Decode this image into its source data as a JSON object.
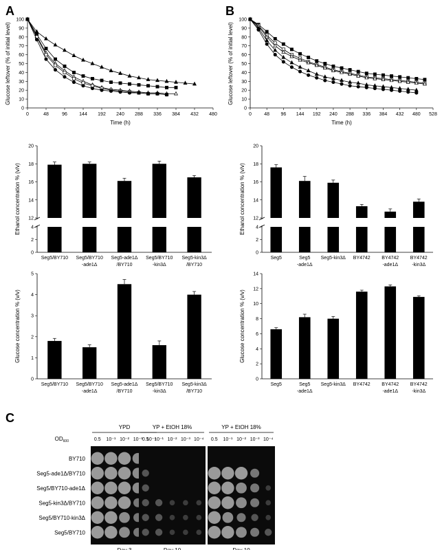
{
  "panels": {
    "A": "A",
    "B": "B",
    "C": "C"
  },
  "chart_data": [
    {
      "id": "A-line",
      "type": "line",
      "xlabel": "Time (h)",
      "ylabel": "Glucose leftover (% of initial level)",
      "xlim": [
        0,
        480
      ],
      "ylim": [
        0,
        100
      ],
      "xticks": [
        "0",
        "48",
        "96",
        "144",
        "192",
        "240",
        "288",
        "336",
        "384",
        "432",
        "480"
      ],
      "yticks": [
        "0",
        "10",
        "20",
        "30",
        "40",
        "50",
        "60",
        "70",
        "80",
        "90",
        "100"
      ],
      "series": [
        {
          "marker": "triangle",
          "x": [
            0,
            24,
            48,
            72,
            96,
            120,
            144,
            168,
            192,
            216,
            240,
            264,
            288,
            312,
            336,
            360,
            384,
            408,
            432
          ],
          "y": [
            100,
            86,
            78,
            71,
            65,
            59,
            54,
            50,
            46,
            42,
            39,
            36,
            34,
            32,
            31,
            30,
            29,
            28,
            27
          ]
        },
        {
          "marker": "square",
          "x": [
            0,
            24,
            48,
            72,
            96,
            120,
            144,
            168,
            192,
            216,
            240,
            264,
            288,
            312,
            336,
            360,
            384
          ],
          "y": [
            100,
            83,
            67,
            55,
            47,
            40,
            36,
            33,
            31,
            29,
            28,
            27,
            26,
            25,
            24,
            23,
            23
          ]
        },
        {
          "marker": "open-triangle",
          "x": [
            0,
            24,
            48,
            72,
            96,
            120,
            144,
            168,
            192,
            216,
            240,
            264,
            288,
            312,
            336,
            360,
            384
          ],
          "y": [
            100,
            81,
            62,
            50,
            42,
            35,
            30,
            26,
            23,
            21,
            20,
            19,
            18,
            17,
            17,
            16,
            16
          ]
        },
        {
          "marker": "open-square",
          "x": [
            0,
            24,
            48,
            72,
            96,
            120,
            144,
            168,
            192,
            216,
            240,
            264,
            288,
            312,
            336,
            360
          ],
          "y": [
            100,
            80,
            60,
            48,
            40,
            33,
            28,
            25,
            22,
            20,
            19,
            18,
            17,
            16,
            16,
            15
          ]
        },
        {
          "marker": "circle",
          "x": [
            0,
            24,
            48,
            72,
            96,
            120,
            144,
            168,
            192,
            216,
            240,
            264,
            288,
            312,
            336,
            360
          ],
          "y": [
            100,
            77,
            55,
            43,
            35,
            29,
            25,
            22,
            20,
            19,
            18,
            17,
            17,
            16,
            16,
            15
          ]
        }
      ]
    },
    {
      "id": "B-line",
      "type": "line",
      "xlabel": "Time (h)",
      "ylabel": "Glucose leftover (% of initial level)",
      "xlim": [
        0,
        528
      ],
      "ylim": [
        0,
        100
      ],
      "xticks": [
        "0",
        "48",
        "96",
        "144",
        "192",
        "240",
        "288",
        "336",
        "384",
        "432",
        "480",
        "528"
      ],
      "yticks": [
        "0",
        "10",
        "20",
        "30",
        "40",
        "50",
        "60",
        "70",
        "80",
        "90",
        "100"
      ],
      "series": [
        {
          "marker": "square",
          "x": [
            0,
            24,
            48,
            72,
            96,
            120,
            144,
            168,
            192,
            216,
            240,
            264,
            288,
            312,
            336,
            360,
            384,
            408,
            432,
            456,
            480,
            504
          ],
          "y": [
            100,
            94,
            86,
            78,
            72,
            66,
            61,
            57,
            53,
            50,
            47,
            45,
            43,
            41,
            39,
            38,
            37,
            36,
            35,
            34,
            33,
            32
          ]
        },
        {
          "marker": "open-square",
          "x": [
            0,
            24,
            48,
            72,
            96,
            120,
            144,
            168,
            192,
            216,
            240,
            264,
            288,
            312,
            336,
            360,
            384,
            408,
            432,
            456,
            480,
            504
          ],
          "y": [
            100,
            93,
            82,
            73,
            66,
            60,
            56,
            52,
            49,
            46,
            43,
            41,
            39,
            37,
            35,
            34,
            33,
            32,
            31,
            30,
            29,
            28
          ]
        },
        {
          "marker": "open-triangle",
          "x": [
            0,
            24,
            48,
            72,
            96,
            120,
            144,
            168,
            192,
            216,
            240,
            264,
            288,
            312,
            336,
            360,
            384,
            408,
            432,
            456,
            480,
            504
          ],
          "y": [
            100,
            92,
            80,
            70,
            63,
            58,
            54,
            51,
            48,
            45,
            42,
            40,
            38,
            36,
            34,
            33,
            32,
            31,
            30,
            29,
            28,
            27
          ]
        },
        {
          "marker": "triangle",
          "x": [
            0,
            24,
            48,
            72,
            96,
            120,
            144,
            168,
            192,
            216,
            240,
            264,
            288,
            312,
            336,
            360,
            384,
            408,
            432,
            456,
            480
          ],
          "y": [
            100,
            90,
            76,
            65,
            57,
            51,
            46,
            42,
            38,
            35,
            33,
            31,
            29,
            28,
            26,
            25,
            24,
            23,
            22,
            21,
            20
          ]
        },
        {
          "marker": "circle",
          "x": [
            0,
            24,
            48,
            72,
            96,
            120,
            144,
            168,
            192,
            216,
            240,
            264,
            288,
            312,
            336,
            360,
            384,
            408,
            432,
            456,
            480
          ],
          "y": [
            100,
            88,
            72,
            60,
            52,
            46,
            41,
            37,
            34,
            31,
            29,
            27,
            25,
            24,
            23,
            22,
            21,
            20,
            19,
            18,
            17
          ]
        }
      ]
    },
    {
      "id": "A-ethanol",
      "type": "bar",
      "ylabel": "Ethanol concentration % (v/v)",
      "broken_axis": true,
      "yticks_upper": [
        "12",
        "14",
        "16",
        "18",
        "20"
      ],
      "yticks_lower": [
        "0",
        "2",
        "4"
      ],
      "categories": [
        [
          "Seg5/BY710"
        ],
        [
          "Seg5/BY710",
          "-ade1Δ"
        ],
        [
          "Seg5-ade1Δ",
          "/BY710"
        ],
        [
          "Seg5/BY710",
          "-kin3Δ"
        ],
        [
          "Seg5-kin3Δ",
          "/BY710"
        ]
      ],
      "values": [
        17.9,
        18.0,
        16.1,
        18.0,
        16.5
      ],
      "errors": [
        0.3,
        0.2,
        0.3,
        0.3,
        0.2
      ]
    },
    {
      "id": "B-ethanol",
      "type": "bar",
      "ylabel": "Ethanol concentration % (v/v)",
      "broken_axis": true,
      "yticks_upper": [
        "12",
        "14",
        "16",
        "18",
        "20"
      ],
      "yticks_lower": [
        "0",
        "2",
        "4"
      ],
      "categories": [
        [
          "Seg5"
        ],
        [
          "Seg5",
          "-ade1Δ"
        ],
        [
          "Seg5-kin3Δ"
        ],
        [
          "BY4742"
        ],
        [
          "BY4742",
          "-ade1Δ"
        ],
        [
          "BY4742",
          "-kin3Δ"
        ]
      ],
      "values": [
        17.6,
        16.1,
        15.9,
        13.3,
        12.7,
        13.8
      ],
      "errors": [
        0.3,
        0.5,
        0.3,
        0.2,
        0.3,
        0.3
      ]
    },
    {
      "id": "A-glucose",
      "type": "bar",
      "ylabel": "Glucose concentration % (v/v)",
      "ylim": [
        0,
        5
      ],
      "yticks": [
        "0",
        "1",
        "2",
        "3",
        "4",
        "5"
      ],
      "categories": [
        [
          "Seg5/BY710"
        ],
        [
          "Seg5/BY710",
          "-ade1Δ"
        ],
        [
          "Seg5-ade1Δ",
          "/BY710"
        ],
        [
          "Seg5/BY710",
          "-kin3Δ"
        ],
        [
          "Seg5-kin3Δ",
          "/BY710"
        ]
      ],
      "values": [
        1.8,
        1.5,
        4.5,
        1.6,
        4.0
      ],
      "errors": [
        0.12,
        0.12,
        0.22,
        0.2,
        0.15
      ]
    },
    {
      "id": "B-glucose",
      "type": "bar",
      "ylabel": "Glucose concentration % (v/v)",
      "ylim": [
        0,
        14
      ],
      "yticks": [
        "0",
        "2",
        "4",
        "6",
        "8",
        "10",
        "12",
        "14"
      ],
      "categories": [
        [
          "Seg5"
        ],
        [
          "Seg5",
          "-ade1Δ"
        ],
        [
          "Seg5-kin3Δ"
        ],
        [
          "BY4742"
        ],
        [
          "BY4742",
          "-ade1Δ"
        ],
        [
          "BY4742",
          "-kin3Δ"
        ]
      ],
      "values": [
        6.6,
        8.2,
        8.0,
        11.6,
        12.3,
        10.9
      ],
      "errors": [
        0.2,
        0.4,
        0.3,
        0.2,
        0.2,
        0.15
      ]
    }
  ],
  "plates": {
    "od_label": "OD",
    "od_sub": "600",
    "dilutions": [
      "0.5",
      "10⁻¹",
      "10⁻²",
      "10⁻³",
      "10⁻⁴"
    ],
    "conditions": [
      {
        "title": "YPD",
        "day": "Day 3"
      },
      {
        "title": "YP + EtOH 18%",
        "day": "Day 10"
      },
      {
        "title": "YP + EtOH 18%",
        "day": "Day 10"
      }
    ],
    "rows": [
      {
        "label": "BY710",
        "growth": [
          [
            5,
            5,
            5,
            4,
            3
          ],
          [
            0,
            0,
            0,
            0,
            0
          ],
          [
            0,
            0,
            0,
            0,
            0
          ]
        ]
      },
      {
        "label": "Seg5-ade1Δ/BY710",
        "growth": [
          [
            5,
            5,
            5,
            4,
            2
          ],
          [
            2,
            0,
            0,
            0,
            0
          ],
          [
            5,
            5,
            5,
            3,
            0
          ]
        ]
      },
      {
        "label": "Seg5/BY710-ade1Δ",
        "growth": [
          [
            5,
            5,
            5,
            4,
            2
          ],
          [
            2,
            0,
            0,
            0,
            0
          ],
          [
            5,
            5,
            4,
            3,
            1
          ]
        ]
      },
      {
        "label": "Seg5-kin3Δ/BY710",
        "growth": [
          [
            5,
            5,
            5,
            3,
            1
          ],
          [
            2,
            2,
            1,
            1,
            1
          ],
          [
            5,
            5,
            4,
            3,
            1
          ]
        ]
      },
      {
        "label": "Seg5/BY710-kin3Δ",
        "growth": [
          [
            5,
            5,
            4,
            3,
            2
          ],
          [
            2,
            2,
            1,
            1,
            1
          ],
          [
            5,
            4,
            3,
            2,
            1
          ]
        ]
      },
      {
        "label": "Seg5/BY710",
        "growth": [
          [
            5,
            5,
            4,
            3,
            2
          ],
          [
            2,
            2,
            1,
            1,
            1
          ],
          [
            5,
            5,
            4,
            3,
            2
          ]
        ]
      }
    ]
  }
}
